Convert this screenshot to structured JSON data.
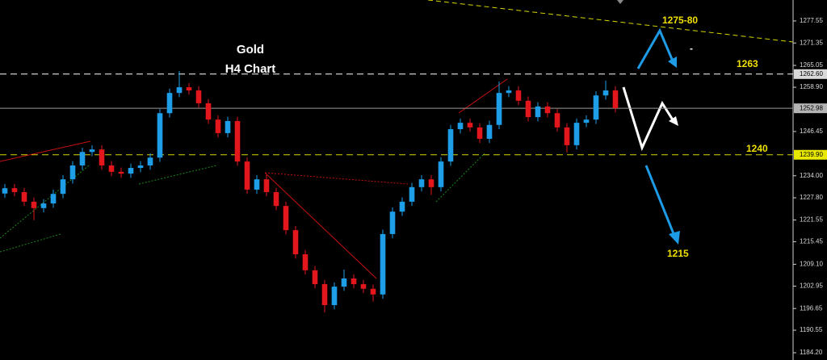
{
  "chart_data": {
    "type": "candlestick",
    "title": "Gold",
    "subtitle": "H4 Chart",
    "open": [
      1229.0,
      1230.5,
      1229.4,
      1226.7,
      1224.9,
      1226.2,
      1228.9,
      1233.0,
      1236.9,
      1240.7,
      1241.4,
      1236.9,
      1235.1,
      1234.6,
      1236.2,
      1236.9,
      1239.1,
      1251.6,
      1257.3,
      1258.9,
      1258.0,
      1254.4,
      1249.8,
      1246.0,
      1249.4,
      1238.0,
      1230.1,
      1233.0,
      1229.4,
      1225.5,
      1218.7,
      1211.9,
      1207.4,
      1203.5,
      1197.6,
      1202.8,
      1205.1,
      1203.5,
      1202.2,
      1200.6,
      1217.6,
      1223.9,
      1226.7,
      1230.8,
      1233.0,
      1230.8,
      1238.0,
      1247.1,
      1248.9,
      1247.6,
      1244.4,
      1248.3,
      1257.3,
      1258.0,
      1255.1,
      1250.5,
      1253.5,
      1251.6,
      1247.6,
      1242.6,
      1248.9,
      1249.8,
      1256.6,
      1258.0
    ],
    "high": [
      1231.7,
      1231.7,
      1230.6,
      1227.9,
      1227.4,
      1230.1,
      1234.2,
      1238.1,
      1241.9,
      1242.6,
      1242.6,
      1238.1,
      1236.3,
      1237.4,
      1238.1,
      1240.3,
      1252.8,
      1258.5,
      1263.5,
      1260.1,
      1259.2,
      1255.6,
      1251.0,
      1250.6,
      1250.6,
      1239.2,
      1234.2,
      1234.2,
      1230.6,
      1226.7,
      1219.9,
      1213.1,
      1208.6,
      1204.7,
      1204.0,
      1207.6,
      1206.3,
      1204.7,
      1203.4,
      1218.8,
      1225.1,
      1227.9,
      1232.0,
      1234.2,
      1234.2,
      1239.2,
      1248.3,
      1250.1,
      1250.1,
      1248.8,
      1249.5,
      1260.5,
      1259.2,
      1259.2,
      1256.3,
      1254.7,
      1254.7,
      1252.8,
      1248.8,
      1250.1,
      1251.0,
      1257.8,
      1260.8,
      1259.2
    ],
    "low": [
      1227.8,
      1228.2,
      1225.5,
      1221.5,
      1223.7,
      1225.0,
      1227.7,
      1231.8,
      1235.7,
      1239.5,
      1235.7,
      1233.9,
      1233.4,
      1233.4,
      1235.0,
      1235.7,
      1237.9,
      1250.4,
      1256.1,
      1256.8,
      1253.2,
      1248.6,
      1244.8,
      1244.8,
      1236.8,
      1228.9,
      1228.9,
      1228.2,
      1224.3,
      1217.5,
      1210.7,
      1206.2,
      1202.3,
      1195.5,
      1196.4,
      1201.6,
      1202.3,
      1201.0,
      1198.6,
      1199.4,
      1216.4,
      1222.7,
      1225.5,
      1229.6,
      1228.6,
      1229.6,
      1236.8,
      1245.9,
      1246.4,
      1243.2,
      1243.2,
      1247.1,
      1256.1,
      1253.9,
      1249.3,
      1249.3,
      1250.4,
      1246.4,
      1240.6,
      1241.4,
      1247.7,
      1248.6,
      1255.4,
      1251.8
    ],
    "close": [
      1230.5,
      1229.4,
      1226.7,
      1224.9,
      1226.2,
      1228.9,
      1233.0,
      1236.9,
      1240.7,
      1241.4,
      1236.9,
      1235.1,
      1234.6,
      1236.2,
      1236.9,
      1239.1,
      1251.6,
      1257.3,
      1258.9,
      1258.0,
      1254.4,
      1249.8,
      1246.0,
      1249.4,
      1238.0,
      1230.1,
      1233.0,
      1229.4,
      1225.5,
      1218.7,
      1211.9,
      1207.4,
      1203.5,
      1197.6,
      1202.8,
      1205.1,
      1203.5,
      1202.2,
      1200.6,
      1217.6,
      1223.9,
      1226.7,
      1230.8,
      1233.0,
      1230.8,
      1238.0,
      1247.1,
      1248.9,
      1247.6,
      1244.4,
      1248.3,
      1257.3,
      1258.0,
      1255.1,
      1250.5,
      1253.5,
      1251.6,
      1247.6,
      1242.6,
      1248.9,
      1249.8,
      1256.6,
      1258.0,
      1253.0
    ],
    "up_color": "#1f9ee8",
    "down_color": "#e3161b",
    "ylim": [
      1182.16,
      1283.45
    ],
    "yticks": [
      1277.55,
      1271.35,
      1265.05,
      {
        "value": 1258.9,
        "label": "1258.90"
      },
      1246.45,
      {
        "value": 1234.0,
        "label": "1234.00"
      },
      {
        "value": 1227.8,
        "label": "1227.80"
      },
      1221.55,
      1215.45,
      {
        "value": 1209.1,
        "label": "1209.10"
      },
      1202.95,
      1196.65,
      1190.55,
      {
        "value": 1184.2,
        "label": "1184.20"
      }
    ],
    "price_lines": [
      {
        "value": 1262.6,
        "label": "1262.60",
        "color": "#ffffff",
        "box": "#d9d9d9",
        "dashed": true
      },
      {
        "value": 1252.98,
        "color": "#9a9a9a",
        "box": "#b4b4b4",
        "dashed": false
      },
      {
        "value": 1239.9,
        "label": "1239.90",
        "color": "#d6d600",
        "box": "#e8e800",
        "dashed": true
      }
    ],
    "annotations": [
      "1275-80",
      "1263",
      "1240",
      "1215",
      "-"
    ]
  }
}
